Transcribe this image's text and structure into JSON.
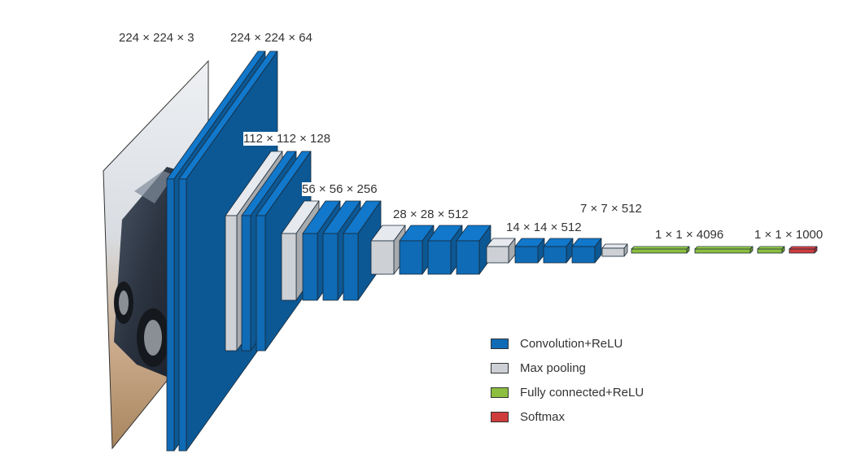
{
  "colors": {
    "conv": "#0f6bb5",
    "pool": "#cdd0d4",
    "fc": "#8cbf3f",
    "softmax": "#cf3c3c",
    "edge": "#1a2a3a"
  },
  "labels": {
    "input": "224 × 224 × 3",
    "block1": "224 × 224 × 64",
    "block2": "112 × 112 × 128",
    "block3": "56 × 56 × 256",
    "block4": "28 × 28 × 512",
    "block5": "14 × 14 × 512",
    "pool5": "7 × 7 × 512",
    "fc": "1 × 1 × 4096",
    "output": "1 × 1 × 1000"
  },
  "input_image": {
    "subject": "car photo"
  },
  "legend": [
    {
      "key": "conv",
      "label": "Convolution+ReLU"
    },
    {
      "key": "pool",
      "label": "Max pooling"
    },
    {
      "key": "fc",
      "label": "Fully connected+ReLU"
    },
    {
      "key": "softmax",
      "label": "Softmax"
    }
  ]
}
